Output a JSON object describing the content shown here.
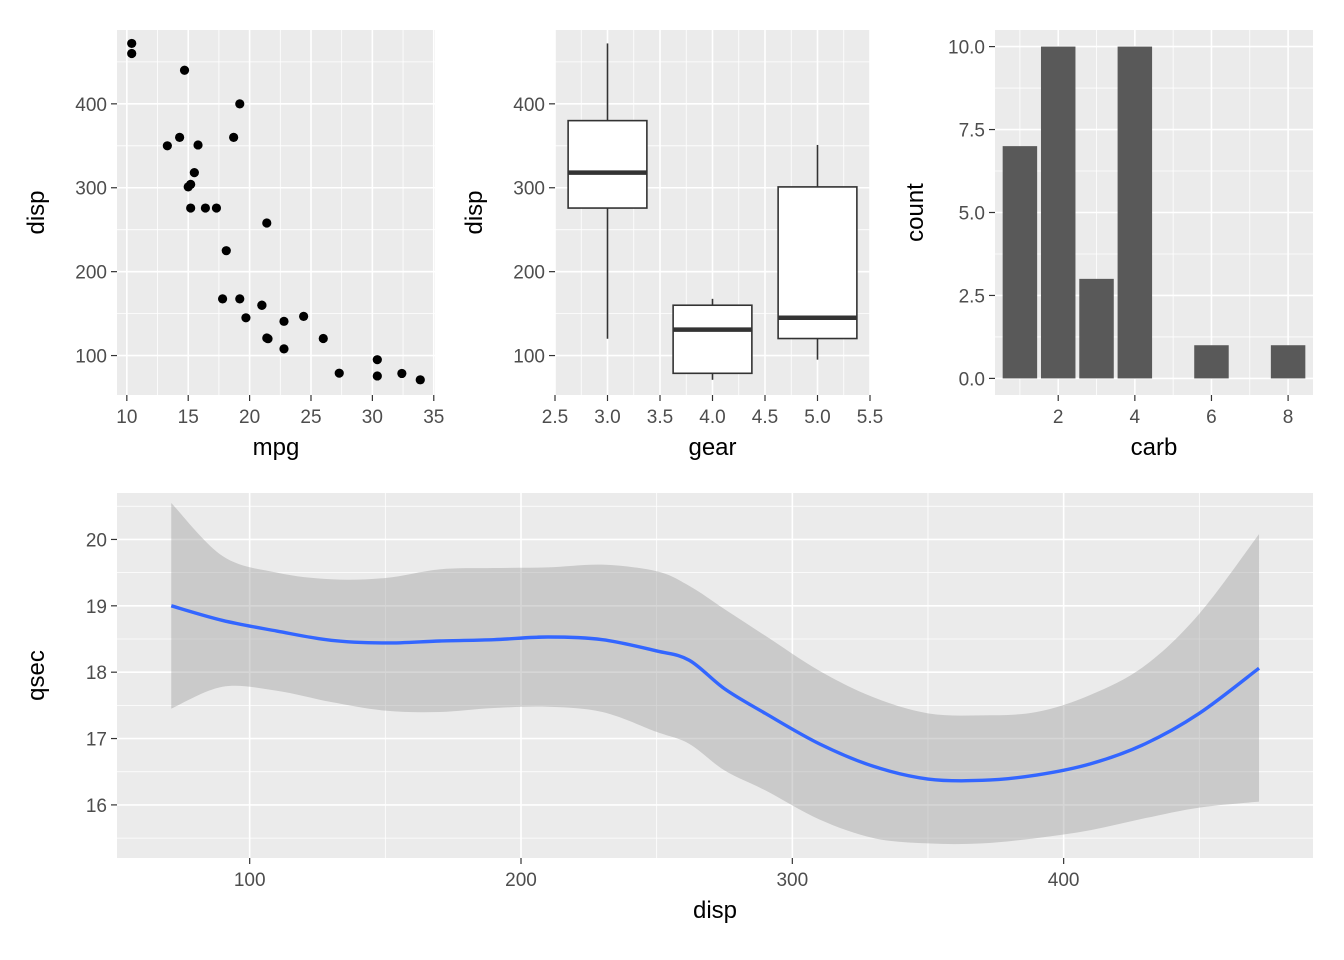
{
  "chart_data": [
    {
      "type": "scatter",
      "xlabel": "mpg",
      "ylabel": "disp",
      "xlim": [
        9.2,
        35.1
      ],
      "ylim": [
        53.0,
        488.0
      ],
      "x_ticks": [
        10,
        15,
        20,
        25,
        30,
        35
      ],
      "y_ticks": [
        100,
        200,
        300,
        400
      ],
      "grid": true,
      "points": [
        {
          "x": 21.0,
          "y": 160
        },
        {
          "x": 21.0,
          "y": 160
        },
        {
          "x": 22.8,
          "y": 108
        },
        {
          "x": 21.4,
          "y": 258
        },
        {
          "x": 18.7,
          "y": 360
        },
        {
          "x": 18.1,
          "y": 225
        },
        {
          "x": 14.3,
          "y": 360
        },
        {
          "x": 24.4,
          "y": 146.7
        },
        {
          "x": 22.8,
          "y": 140.8
        },
        {
          "x": 19.2,
          "y": 167.6
        },
        {
          "x": 17.8,
          "y": 167.6
        },
        {
          "x": 16.4,
          "y": 275.8
        },
        {
          "x": 17.3,
          "y": 275.8
        },
        {
          "x": 15.2,
          "y": 275.8
        },
        {
          "x": 10.4,
          "y": 472
        },
        {
          "x": 10.4,
          "y": 460
        },
        {
          "x": 14.7,
          "y": 440
        },
        {
          "x": 32.4,
          "y": 78.7
        },
        {
          "x": 30.4,
          "y": 75.7
        },
        {
          "x": 33.9,
          "y": 71.1
        },
        {
          "x": 21.5,
          "y": 120.1
        },
        {
          "x": 15.5,
          "y": 318
        },
        {
          "x": 15.2,
          "y": 304
        },
        {
          "x": 13.3,
          "y": 350
        },
        {
          "x": 19.2,
          "y": 400
        },
        {
          "x": 27.3,
          "y": 79
        },
        {
          "x": 26.0,
          "y": 120.3
        },
        {
          "x": 30.4,
          "y": 95.1
        },
        {
          "x": 15.8,
          "y": 351
        },
        {
          "x": 19.7,
          "y": 145
        },
        {
          "x": 15.0,
          "y": 301
        },
        {
          "x": 21.4,
          "y": 121
        }
      ]
    },
    {
      "type": "box",
      "xlabel": "gear",
      "ylabel": "disp",
      "xlim": [
        2.5,
        5.5
      ],
      "ylim": [
        53.0,
        488.0
      ],
      "x_ticks": [
        "2.5",
        "3.0",
        "3.5",
        "4.0",
        "4.5",
        "5.0",
        "5.5"
      ],
      "y_ticks": [
        100,
        200,
        300,
        400
      ],
      "grid": true,
      "boxes": [
        {
          "x": 3,
          "whisker_low": 120.1,
          "q1": 275.8,
          "median": 318,
          "q3": 380,
          "whisker_high": 472
        },
        {
          "x": 4,
          "whisker_low": 71.1,
          "q1": 78.85,
          "median": 130.9,
          "q3": 160,
          "whisker_high": 167.6
        },
        {
          "x": 5,
          "whisker_low": 95.1,
          "q1": 120.3,
          "median": 145,
          "q3": 301,
          "whisker_high": 351
        }
      ]
    },
    {
      "type": "bar",
      "xlabel": "carb",
      "ylabel": "count",
      "xlim": [
        0.35,
        8.65
      ],
      "ylim": [
        -0.5,
        10.5
      ],
      "x_ticks": [
        2,
        4,
        6,
        8
      ],
      "y_ticks": [
        "0.0",
        "2.5",
        "5.0",
        "7.5",
        "10.0"
      ],
      "grid": true,
      "categories": [
        1,
        2,
        3,
        4,
        6,
        8
      ],
      "values": [
        7,
        10,
        3,
        10,
        1,
        1
      ],
      "bar_color": "#595959"
    },
    {
      "type": "line",
      "subtype": "smooth-with-ribbon",
      "xlabel": "disp",
      "ylabel": "qsec",
      "xlim": [
        51.1,
        491.9
      ],
      "ylim": [
        15.2,
        20.7
      ],
      "x_ticks": [
        100,
        200,
        300,
        400
      ],
      "y_ticks": [
        16,
        17,
        18,
        19,
        20
      ],
      "grid": true,
      "line_color": "#3366FF",
      "ribbon_color": "#999999",
      "series": [
        {
          "x": [
            71.1,
            90,
            110,
            130,
            150,
            170,
            190,
            210,
            230,
            250,
            262,
            275,
            290,
            310,
            330,
            350,
            370,
            390,
            410,
            430,
            450,
            472
          ],
          "y": [
            19.0,
            18.78,
            18.62,
            18.48,
            18.44,
            18.47,
            18.49,
            18.53,
            18.49,
            18.32,
            18.18,
            17.75,
            17.38,
            16.92,
            16.58,
            16.39,
            16.37,
            16.45,
            16.62,
            16.92,
            17.38,
            18.06
          ],
          "ymin": [
            17.45,
            17.78,
            17.72,
            17.55,
            17.42,
            17.4,
            17.46,
            17.48,
            17.4,
            17.1,
            16.92,
            16.52,
            16.22,
            15.78,
            15.5,
            15.42,
            15.42,
            15.5,
            15.62,
            15.8,
            15.96,
            16.05
          ],
          "ymax": [
            20.55,
            19.75,
            19.5,
            19.4,
            19.42,
            19.55,
            19.57,
            19.58,
            19.62,
            19.52,
            19.3,
            18.95,
            18.55,
            18.02,
            17.62,
            17.38,
            17.35,
            17.4,
            17.66,
            18.1,
            18.88,
            20.08
          ]
        }
      ]
    }
  ]
}
